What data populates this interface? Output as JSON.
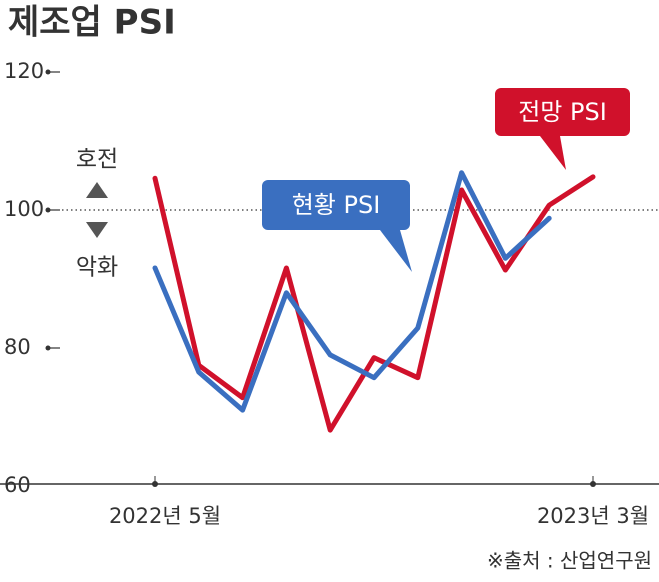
{
  "chart_data": {
    "type": "line",
    "title": "제조업 PSI",
    "categories": [
      "2022년 5월",
      null,
      null,
      null,
      null,
      null,
      null,
      null,
      null,
      null,
      "2023년 3월"
    ],
    "series": [
      {
        "name": "전망 PSI",
        "color": "#d0112b",
        "values": [
          104.6,
          77.5,
          72.8,
          91.6,
          68.1,
          78.6,
          75.7,
          102.9,
          91.3,
          100.7,
          104.8
        ]
      },
      {
        "name": "현황 PSI",
        "color": "#3a6fc0",
        "values": [
          91.6,
          76.5,
          71.0,
          88.0,
          79.0,
          75.7,
          82.9,
          105.4,
          93.0,
          98.8,
          null
        ]
      }
    ],
    "ylim": [
      60,
      120
    ],
    "yticks": [
      60,
      80,
      100,
      120
    ],
    "reference_y": 100,
    "annotations": [
      "호전",
      "악화"
    ],
    "source": "※출처 : 산업연구원"
  }
}
